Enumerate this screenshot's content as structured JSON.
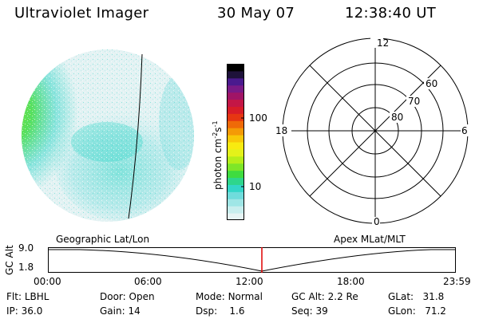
{
  "header": {
    "instrument": "Ultraviolet Imager",
    "date": "30 May 07",
    "time": "12:38:40 UT"
  },
  "colorbar": {
    "unit_label": "photon cm",
    "unit_sup1": "-2",
    "unit_s": "s",
    "unit_sup2": "-1",
    "tick_labels": [
      "100",
      "10"
    ],
    "tick_values": [
      100,
      10
    ],
    "colors": [
      "#e6f4f4",
      "#c8eeee",
      "#9fe6e6",
      "#6fdcdc",
      "#33d6c8",
      "#2ed68c",
      "#3fdc3f",
      "#7ee628",
      "#b6ee1a",
      "#e4f21a",
      "#f8ea10",
      "#f8c808",
      "#f49a06",
      "#ef6a08",
      "#e63612",
      "#d81c28",
      "#c41646",
      "#a01466",
      "#7a1a86",
      "#4a1a8e",
      "#1e123a",
      "#000000"
    ]
  },
  "left_panel": {
    "label": "Geographic Lat/Lon"
  },
  "right_panel": {
    "label": "Apex MLat/MLT",
    "mlt_labels": {
      "top": "12",
      "bottom": "0",
      "left": "18",
      "right": "6"
    },
    "lat_labels": [
      "60",
      "70",
      "80"
    ]
  },
  "timeline": {
    "y_axis_label": "GC Alt",
    "y_ticks": [
      "9.0",
      "1.8"
    ],
    "x_ticks": [
      "00:00",
      "06:00",
      "12:00",
      "18:00",
      "23:59"
    ],
    "marker_time": "12:38:40",
    "marker_color": "#e00000"
  },
  "status": {
    "flt_label": "Flt:",
    "flt_value": "LBHL",
    "ip_label": "IP:",
    "ip_value": "36.0",
    "door_label": "Door:",
    "door_value": "Open",
    "gain_label": "Gain:",
    "gain_value": "14",
    "mode_label": "Mode:",
    "mode_value": "Normal",
    "dsp_label": "Dsp:",
    "dsp_value": "1.6",
    "gcalt_label": "GC Alt:",
    "gcalt_value": "2.2 Re",
    "seq_label": "Seq:",
    "seq_value": "39",
    "glat_label": "GLat:",
    "glat_value": "31.8",
    "glon_label": "GLon:",
    "glon_value": "71.2"
  }
}
